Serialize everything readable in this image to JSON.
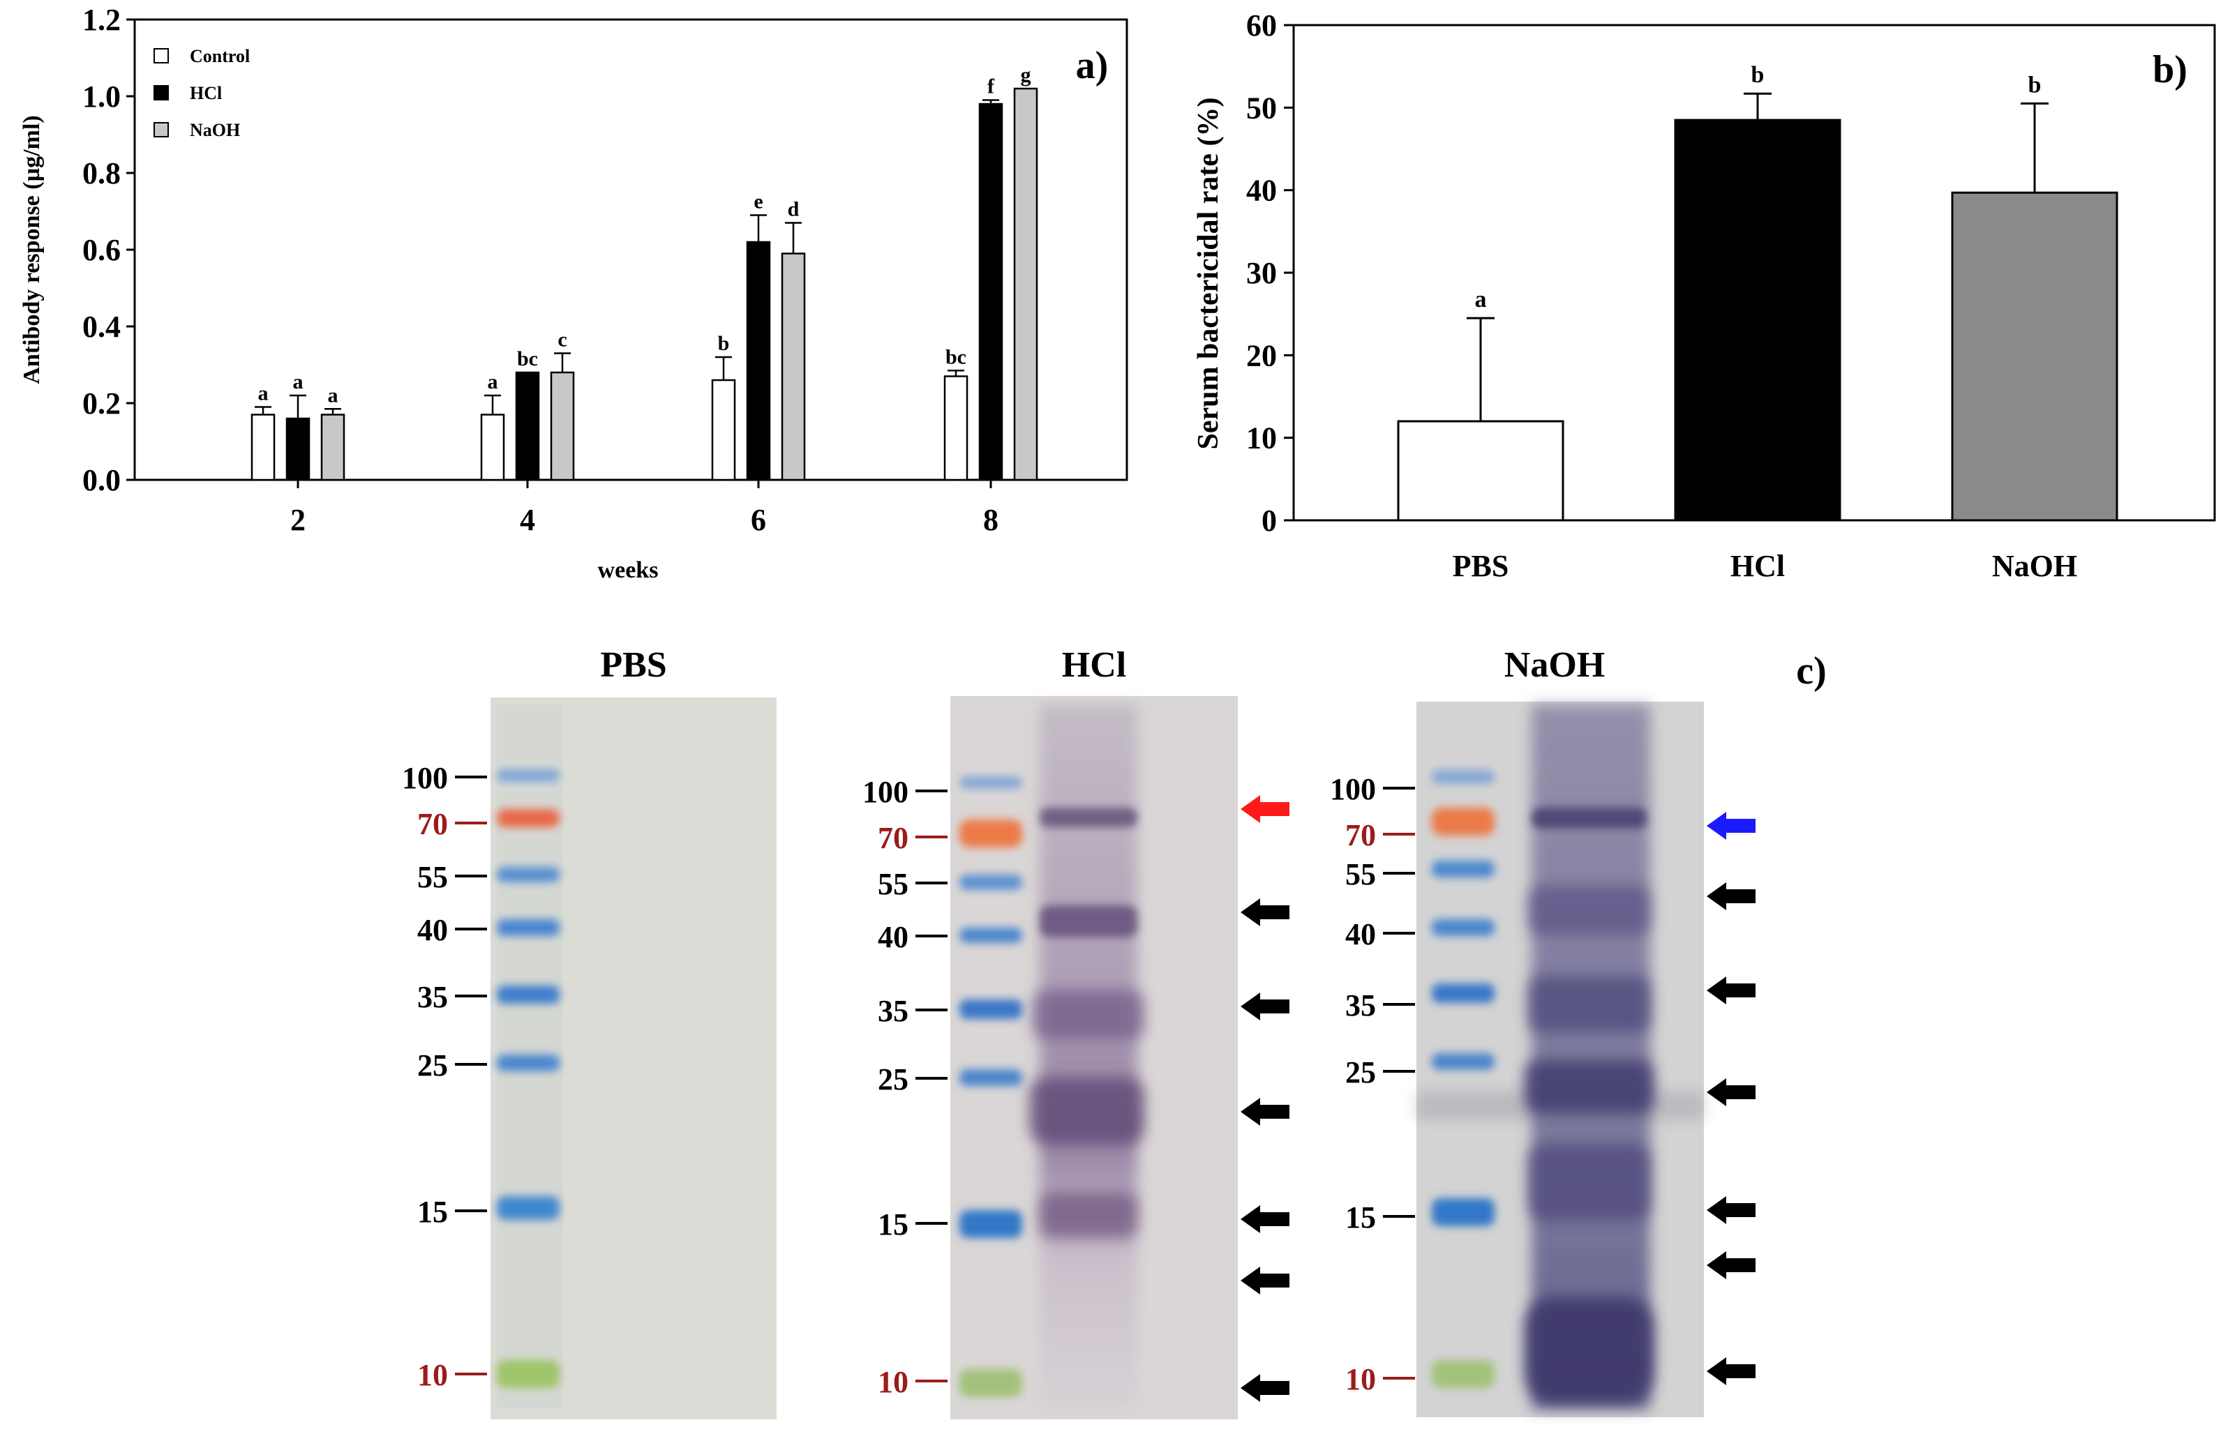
{
  "colors": {
    "control": "#ffffff",
    "hcl": "#000000",
    "naoh_a": "#c8c8c8",
    "naoh_b": "#8a8a8a",
    "marker_red": "#9b1c1c",
    "arrow_red": "#ff1a1a",
    "arrow_blue": "#1a1aff",
    "arrow_black": "#000000"
  },
  "chart_data": [
    {
      "type": "bar",
      "panel_label": "a)",
      "xlabel": "weeks",
      "ylabel": "Antibody response (µg/ml)",
      "categories": [
        "2",
        "4",
        "6",
        "8"
      ],
      "ylim": [
        0,
        1.2
      ],
      "yticks": [
        "0.0",
        "0.2",
        "0.4",
        "0.6",
        "0.8",
        "1.0",
        "1.2"
      ],
      "legend_position": "top-left",
      "series": [
        {
          "name": "Control",
          "color_key": "control",
          "values": [
            0.17,
            0.17,
            0.26,
            0.27
          ],
          "errors": [
            0.02,
            0.05,
            0.06,
            0.015
          ],
          "letters": [
            "a",
            "a",
            "b",
            "bc"
          ]
        },
        {
          "name": "HCl",
          "color_key": "hcl",
          "values": [
            0.16,
            0.28,
            0.62,
            0.98
          ],
          "errors": [
            0.06,
            0.0,
            0.07,
            0.01
          ],
          "letters": [
            "a",
            "bc",
            "e",
            "f"
          ]
        },
        {
          "name": "NaOH",
          "color_key": "naoh_a",
          "values": [
            0.17,
            0.28,
            0.59,
            1.02
          ],
          "errors": [
            0.015,
            0.05,
            0.08,
            0.0
          ],
          "letters": [
            "a",
            "c",
            "d",
            "g"
          ]
        }
      ]
    },
    {
      "type": "bar",
      "panel_label": "b)",
      "ylabel": "Serum bactericidal rate (%)",
      "categories": [
        "PBS",
        "HCl",
        "NaOH"
      ],
      "ylim": [
        0,
        60
      ],
      "yticks": [
        "0",
        "10",
        "20",
        "30",
        "40",
        "50",
        "60"
      ],
      "values": [
        12,
        48.5,
        39.7
      ],
      "errors": [
        12.5,
        3.2,
        10.8
      ],
      "letters": [
        "a",
        "b",
        "b"
      ],
      "color_keys": [
        "control",
        "hcl",
        "naoh_b"
      ]
    }
  ],
  "blots": {
    "panel_label": "c)",
    "lanes": [
      {
        "title": "PBS",
        "markers": [
          "100",
          "70",
          "55",
          "40",
          "35",
          "25",
          "15",
          "10"
        ]
      },
      {
        "title": "HCl",
        "markers": [
          "100",
          "70",
          "55",
          "40",
          "35",
          "25",
          "15",
          "10"
        ]
      },
      {
        "title": "NaOH",
        "markers": [
          "100",
          "70",
          "55",
          "40",
          "35",
          "25",
          "15",
          "10"
        ]
      }
    ]
  }
}
